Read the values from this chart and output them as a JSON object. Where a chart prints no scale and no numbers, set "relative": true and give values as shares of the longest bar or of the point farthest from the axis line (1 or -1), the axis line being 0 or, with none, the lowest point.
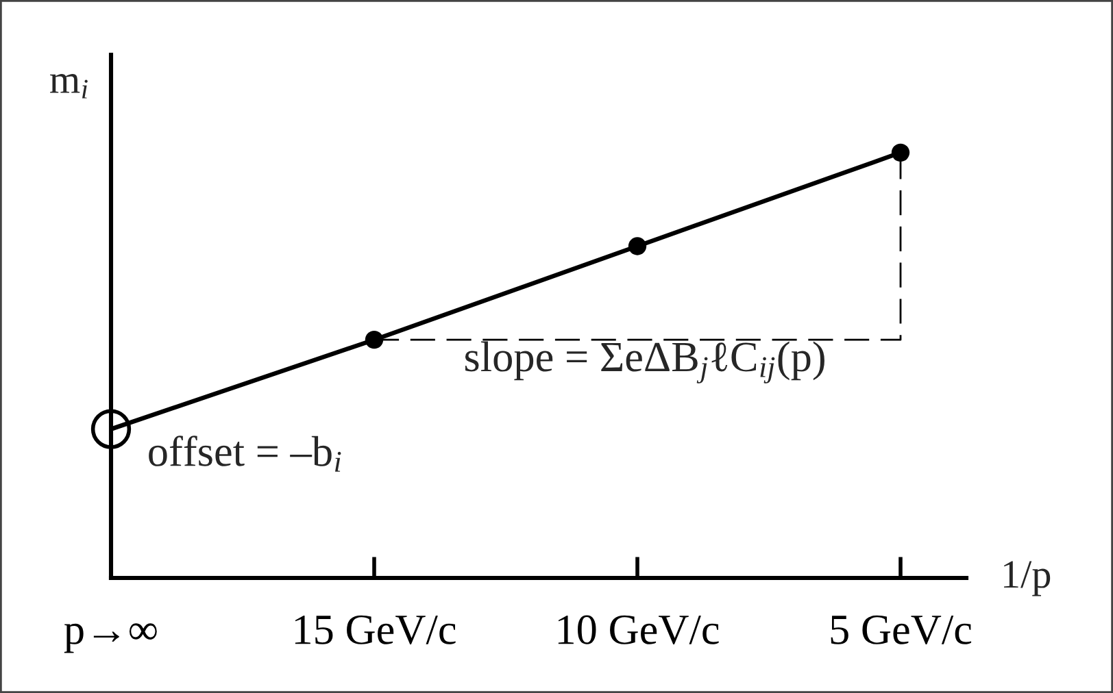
{
  "chart_data": {
    "type": "line",
    "relative": true,
    "xlabel": "1/p",
    "ylabel": "m$_{i}$",
    "categories": [
      "p→∞",
      "15 GeV/c",
      "10 GeV/c",
      "5 GeV/c"
    ],
    "series": [
      {
        "color": "#000000",
        "line_style": "solid",
        "values": [
          0.35,
          0.56,
          0.78,
          1
        ]
      },
      {
        "type": "scatter",
        "color": "#000000",
        "marker": "circle",
        "values": [
          null,
          0.56,
          0.78,
          1
        ]
      },
      {
        "type": "line",
        "color": "#000000",
        "line_style": "dashed",
        "x": [
          "15 GeV/c",
          "5 GeV/c",
          "5 GeV/c"
        ],
        "values": [
          0.56,
          0.56,
          1
        ]
      }
    ],
    "annotations": [
      {
        "text": "offset = –b$_{i}$",
        "x": "p→∞",
        "y": 0.35
      },
      {
        "text": "slope = ΣeΔB$_{j}$ℓC$_{ij}$(p)",
        "x": "10 GeV/c",
        "y": 0.56
      }
    ]
  }
}
